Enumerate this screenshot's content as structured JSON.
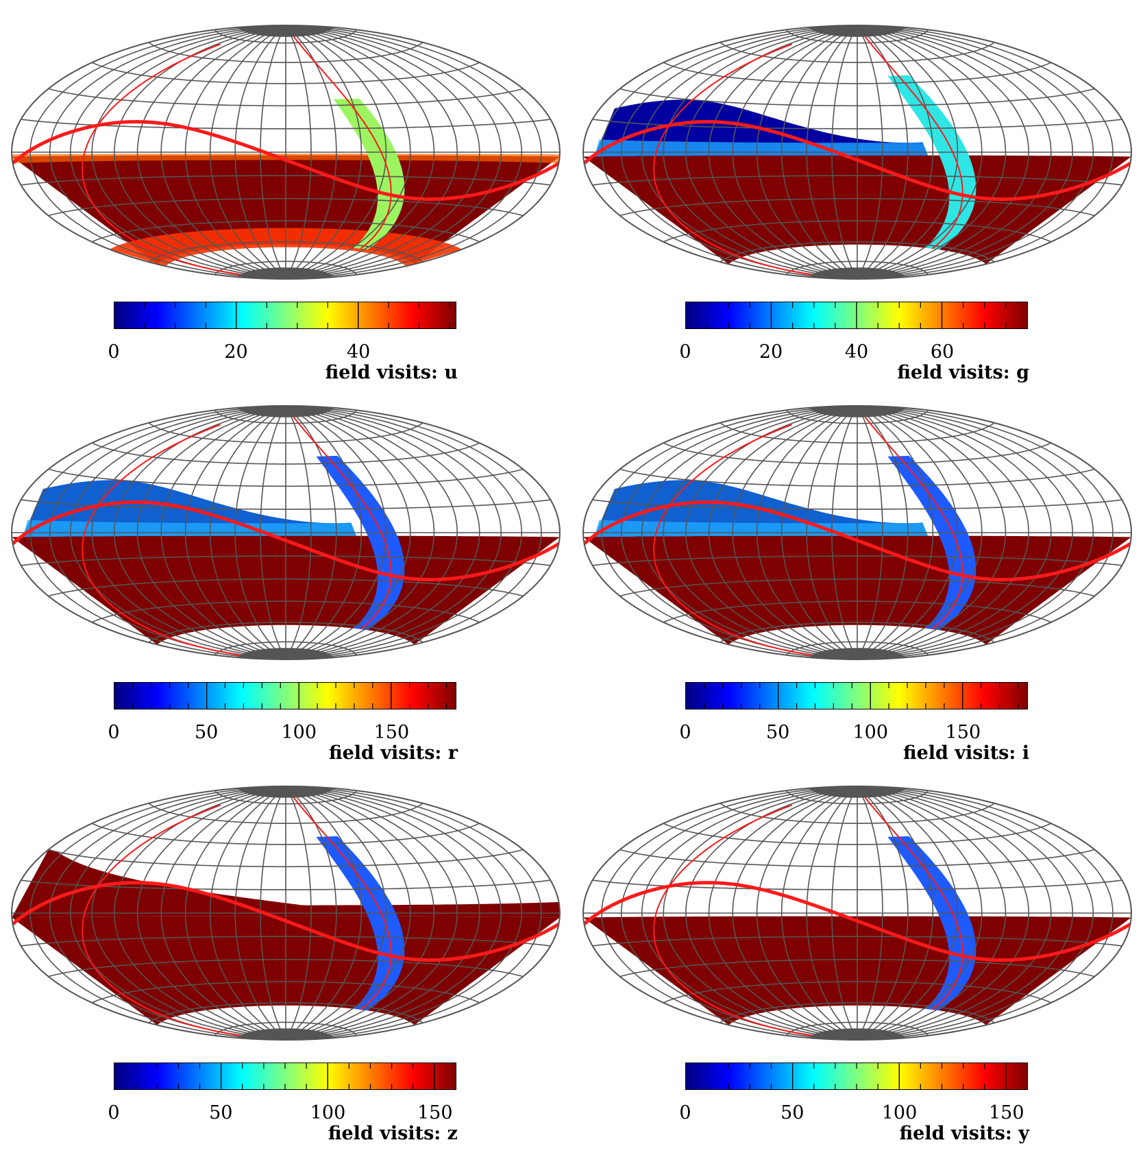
{
  "panels": [
    {
      "filter": "u",
      "label": "field visits: u",
      "vmax": 56,
      "ticks": [
        {
          "value": 0,
          "label": "0"
        },
        {
          "value": 20,
          "label": "20"
        },
        {
          "value": 40,
          "label": "40"
        }
      ],
      "coverage": "full-south-partial"
    },
    {
      "filter": "g",
      "label": "field visits: g",
      "vmax": 80,
      "ticks": [
        {
          "value": 0,
          "label": "0"
        },
        {
          "value": 20,
          "label": "20"
        },
        {
          "value": 40,
          "label": "40"
        },
        {
          "value": 60,
          "label": "60"
        }
      ],
      "coverage": "north-cap-blue"
    },
    {
      "filter": "r",
      "label": "field visits: r",
      "vmax": 185,
      "ticks": [
        {
          "value": 0,
          "label": "0"
        },
        {
          "value": 50,
          "label": "50"
        },
        {
          "value": 100,
          "label": "100"
        },
        {
          "value": 150,
          "label": "150"
        }
      ],
      "coverage": "north-cap-blue"
    },
    {
      "filter": "i",
      "label": "field visits: i",
      "vmax": 185,
      "ticks": [
        {
          "value": 0,
          "label": "0"
        },
        {
          "value": 50,
          "label": "50"
        },
        {
          "value": 100,
          "label": "100"
        },
        {
          "value": 150,
          "label": "150"
        }
      ],
      "coverage": "north-cap-blue"
    },
    {
      "filter": "z",
      "label": "field visits: z",
      "vmax": 160,
      "ticks": [
        {
          "value": 0,
          "label": "0"
        },
        {
          "value": 50,
          "label": "50"
        },
        {
          "value": 100,
          "label": "100"
        },
        {
          "value": 150,
          "label": "150"
        }
      ],
      "coverage": "north-dark"
    },
    {
      "filter": "y",
      "label": "field visits: y",
      "vmax": 160,
      "ticks": [
        {
          "value": 0,
          "label": "0"
        },
        {
          "value": 50,
          "label": "50"
        },
        {
          "value": 100,
          "label": "100"
        },
        {
          "value": 150,
          "label": "150"
        }
      ],
      "coverage": "south-only"
    }
  ],
  "colors": {
    "grid": "#555555",
    "ecliptic": "#ff1a1a",
    "galactic_plane_fill": "#1e5bff",
    "high": "#7f0000",
    "mid": "#ff3300",
    "low": "#0000a0",
    "u_plane": "#9cf560",
    "g_plane": "#2ee6e6",
    "colormap": [
      "#00007f",
      "#0000ff",
      "#007fff",
      "#00ffff",
      "#7fff7f",
      "#ffff00",
      "#ff7f00",
      "#ff0000",
      "#7f0000"
    ]
  },
  "projection": "Aitoff-Hammer"
}
